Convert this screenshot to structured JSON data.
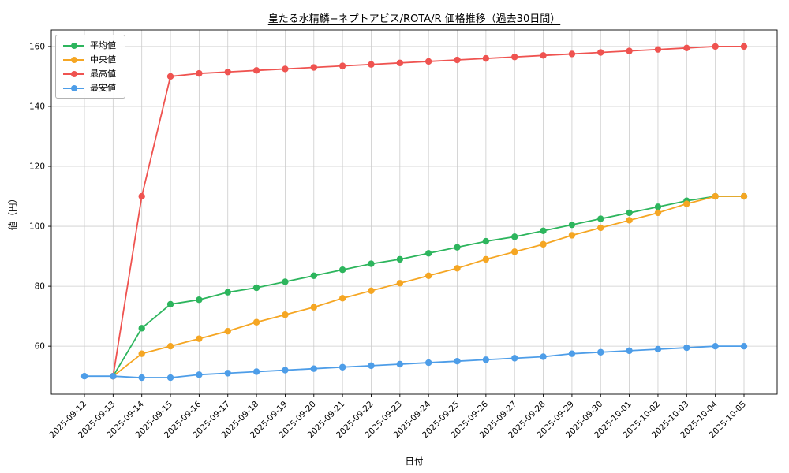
{
  "figure": {
    "title": "皇たる水精鱗−ネプトアビス/ROTA/R 価格推移（過去30日間）",
    "background": "#ffffff"
  },
  "chart_data": {
    "type": "line",
    "title": "皇たる水精鱗−ネプトアビス/ROTA/R 価格推移（過去30日間）",
    "xlabel": "日付",
    "ylabel": "値（円）",
    "grid": true,
    "legend_position": "upper-left",
    "grid_color": "#cccccc",
    "categories": [
      "2025-09-12",
      "2025-09-13",
      "2025-09-14",
      "2025-09-15",
      "2025-09-16",
      "2025-09-17",
      "2025-09-18",
      "2025-09-19",
      "2025-09-20",
      "2025-09-21",
      "2025-09-22",
      "2025-09-23",
      "2025-09-24",
      "2025-09-25",
      "2025-09-26",
      "2025-09-27",
      "2025-09-28",
      "2025-09-29",
      "2025-09-30",
      "2025-10-01",
      "2025-10-02",
      "2025-10-03",
      "2025-10-04",
      "2025-10-05"
    ],
    "series": [
      {
        "name": "平均値",
        "color": "#2db55d",
        "values": [
          null,
          50,
          66,
          74,
          75.5,
          78,
          79.5,
          81.5,
          83.5,
          85.5,
          87.5,
          89,
          91,
          93,
          95,
          96.5,
          98.5,
          100.5,
          102.5,
          104.5,
          106.5,
          108.5,
          110,
          110
        ]
      },
      {
        "name": "中央値",
        "color": "#f5a623",
        "values": [
          null,
          50,
          57.5,
          60,
          62.5,
          65,
          68,
          70.5,
          73,
          76,
          78.5,
          81,
          83.5,
          86,
          89,
          91.5,
          94,
          97,
          99.5,
          102,
          104.5,
          107.5,
          110,
          110
        ]
      },
      {
        "name": "最高値",
        "color": "#ef5350",
        "values": [
          null,
          50,
          110,
          150,
          151,
          151.5,
          152,
          152.5,
          153,
          153.5,
          154,
          154.5,
          155,
          155.5,
          156,
          156.5,
          157,
          157.5,
          158,
          158.5,
          159,
          159.5,
          160,
          160
        ]
      },
      {
        "name": "最安値",
        "color": "#4d9de8",
        "values": [
          50,
          50,
          49.5,
          49.5,
          50.5,
          51,
          51.5,
          52,
          52.5,
          53,
          53.5,
          54,
          54.5,
          55,
          55.5,
          56,
          56.5,
          57.5,
          58,
          58.5,
          59,
          59.5,
          60,
          60
        ]
      }
    ],
    "yticks": [
      60,
      80,
      100,
      120,
      140,
      160
    ],
    "ylim": [
      44,
      165.5
    ]
  }
}
